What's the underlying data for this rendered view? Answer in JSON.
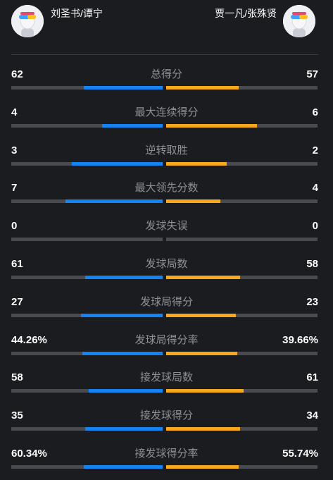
{
  "header": {
    "left_player": "刘圣书/谭宁",
    "right_player": "贾一凡/张殊贤"
  },
  "colors": {
    "left_accent": "#1383f5",
    "right_accent": "#f7a81c",
    "track": "#4a4b51",
    "background": "#1b1c20"
  },
  "stats": [
    {
      "label": "总得分",
      "left": "62",
      "right": "57",
      "left_ratio": 0.52,
      "right_ratio": 0.48
    },
    {
      "label": "最大连续得分",
      "left": "4",
      "right": "6",
      "left_ratio": 0.4,
      "right_ratio": 0.6
    },
    {
      "label": "逆转取胜",
      "left": "3",
      "right": "2",
      "left_ratio": 0.6,
      "right_ratio": 0.4
    },
    {
      "label": "最大领先分数",
      "left": "7",
      "right": "4",
      "left_ratio": 0.64,
      "right_ratio": 0.36
    },
    {
      "label": "发球失误",
      "left": "0",
      "right": "0",
      "left_ratio": 0,
      "right_ratio": 0
    },
    {
      "label": "发球局数",
      "left": "61",
      "right": "58",
      "left_ratio": 0.51,
      "right_ratio": 0.49
    },
    {
      "label": "发球局得分",
      "left": "27",
      "right": "23",
      "left_ratio": 0.54,
      "right_ratio": 0.46
    },
    {
      "label": "发球局得分率",
      "left": "44.26%",
      "right": "39.66%",
      "left_ratio": 0.53,
      "right_ratio": 0.47
    },
    {
      "label": "接发球局数",
      "left": "58",
      "right": "61",
      "left_ratio": 0.49,
      "right_ratio": 0.51
    },
    {
      "label": "接发球得分",
      "left": "35",
      "right": "34",
      "left_ratio": 0.51,
      "right_ratio": 0.49
    },
    {
      "label": "接发球得分率",
      "left": "60.34%",
      "right": "55.74%",
      "left_ratio": 0.52,
      "right_ratio": 0.48
    }
  ]
}
